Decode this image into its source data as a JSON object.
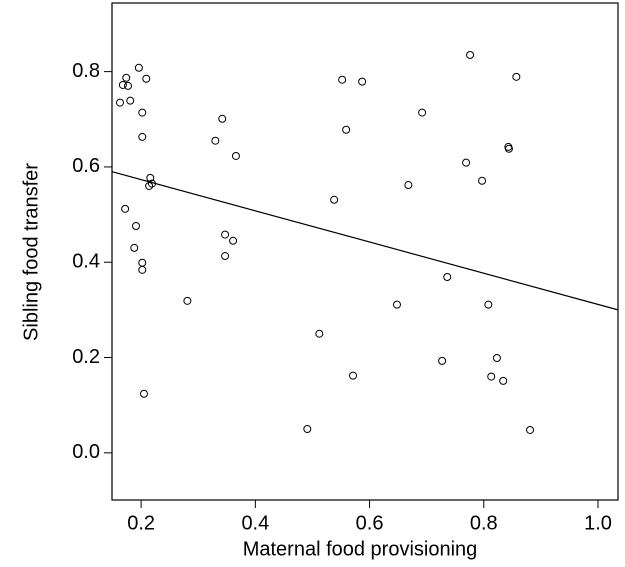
{
  "chart_data": {
    "type": "scatter",
    "x_label": "Maternal food provisioning",
    "y_label": "Sibling food transfer",
    "xlim": [
      0.149,
      1.035
    ],
    "ylim": [
      -0.099,
      0.944
    ],
    "xticks": [
      0.2,
      0.4,
      0.6,
      0.8,
      {
        "value": 1.0,
        "label": "1.0"
      }
    ],
    "yticks": [
      {
        "value": 0,
        "label": "0.0"
      },
      0.2,
      0.4,
      0.6,
      0.8
    ],
    "color": "#000000",
    "x": [
      0.163,
      0.168,
      0.174,
      0.177,
      0.181,
      0.196,
      0.209,
      0.202,
      0.202,
      0.216,
      0.214,
      0.219,
      0.172,
      0.191,
      0.188,
      0.202,
      0.202,
      0.205,
      0.281,
      0.33,
      0.342,
      0.366,
      0.347,
      0.361,
      0.347,
      0.512,
      0.491,
      0.538,
      0.552,
      0.559,
      0.587,
      0.571,
      0.668,
      0.692,
      0.648,
      0.736,
      0.727,
      0.769,
      0.776,
      0.797,
      0.843,
      0.844,
      0.808,
      0.823,
      0.813,
      0.834,
      0.857,
      0.881
    ],
    "values": [
      0.735,
      0.772,
      0.787,
      0.77,
      0.739,
      0.808,
      0.785,
      0.714,
      0.663,
      0.577,
      0.56,
      0.565,
      0.512,
      0.476,
      0.43,
      0.399,
      0.384,
      0.124,
      0.319,
      0.655,
      0.701,
      0.623,
      0.458,
      0.445,
      0.413,
      0.25,
      0.05,
      0.531,
      0.783,
      0.678,
      0.779,
      0.162,
      0.562,
      0.714,
      0.311,
      0.369,
      0.193,
      0.609,
      0.835,
      0.571,
      0.642,
      0.638,
      0.311,
      0.199,
      0.16,
      0.151,
      0.789,
      0.048
    ],
    "trend_line": {
      "x": [
        0.149,
        1.035
      ],
      "y": [
        0.59,
        0.3
      ]
    }
  }
}
